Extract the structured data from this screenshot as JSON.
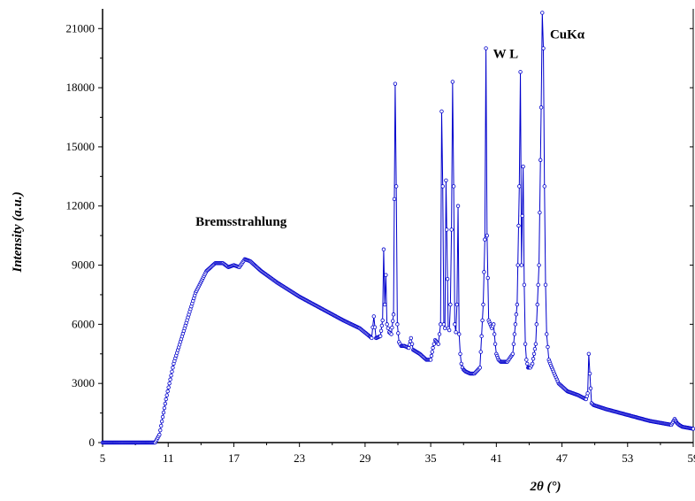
{
  "chart_data": {
    "type": "line",
    "xlabel": "2θ (°)",
    "ylabel": "Intensity (a.u.)",
    "xlim": [
      5,
      59
    ],
    "ylim": [
      0,
      22000
    ],
    "xticks": [
      "5",
      "11",
      "17",
      "23",
      "29",
      "35",
      "41",
      "47",
      "53",
      "59"
    ],
    "yticks": [
      "0",
      "3000",
      "6000",
      "9000",
      "12000",
      "15000",
      "18000",
      "21000"
    ],
    "grid": false,
    "line_color": "#0000cc",
    "marker": "open-circle",
    "annotations": [
      {
        "text": "Bremsstrahlung",
        "x": 13.5,
        "y": 11000
      },
      {
        "text": "W L",
        "x": 40.7,
        "y": 19500
      },
      {
        "text": "CuKα",
        "x": 45.9,
        "y": 20500
      }
    ],
    "series": [
      {
        "x": [
          5,
          8,
          9.8,
          10.2,
          10.8,
          11.5,
          12.5,
          13.5,
          14.5,
          15.3,
          16.0,
          16.5,
          17.0,
          17.5,
          18.0,
          18.5,
          19.5,
          21,
          23,
          25,
          27,
          28.5,
          29.4,
          29.6,
          29.8,
          30.0,
          30.4,
          30.6,
          30.7,
          30.8,
          30.9,
          31.0,
          31.2,
          31.4,
          31.6,
          31.75,
          31.85,
          31.95,
          32.1,
          32.3,
          32.6,
          33.0,
          33.2,
          33.4,
          34.0,
          34.6,
          35.0,
          35.2,
          35.4,
          35.7,
          35.9,
          36.0,
          36.1,
          36.2,
          36.3,
          36.4,
          36.6,
          36.7,
          36.8,
          36.9,
          37.0,
          37.1,
          37.2,
          37.3,
          37.4,
          37.5,
          37.6,
          37.7,
          37.8,
          37.9,
          38.0,
          38.2,
          38.6,
          39.0,
          39.5,
          39.8,
          39.95,
          40.05,
          40.15,
          40.3,
          40.45,
          40.6,
          40.75,
          40.9,
          41.0,
          41.2,
          41.4,
          41.7,
          42.0,
          42.5,
          42.9,
          43.1,
          43.2,
          43.3,
          43.45,
          43.55,
          43.65,
          43.75,
          43.9,
          44.1,
          44.3,
          44.6,
          44.9,
          45.1,
          45.2,
          45.3,
          45.4,
          45.5,
          45.6,
          45.8,
          46.0,
          46.3,
          46.7,
          47.5,
          48.5,
          49.2,
          49.35,
          49.45,
          49.55,
          49.7,
          49.9,
          51,
          53,
          55,
          57,
          57.3,
          57.5,
          57.7,
          58,
          59
        ],
        "y": [
          0,
          0,
          0,
          400,
          2200,
          4000,
          5800,
          7600,
          8700,
          9100,
          9100,
          8900,
          9000,
          8900,
          9300,
          9200,
          8700,
          8100,
          7400,
          6800,
          6200,
          5800,
          5400,
          5300,
          6400,
          5300,
          5400,
          6200,
          9800,
          7000,
          8500,
          6000,
          5600,
          5500,
          6500,
          18200,
          13000,
          6000,
          5100,
          4900,
          4900,
          4800,
          5300,
          4700,
          4500,
          4200,
          4200,
          4800,
          5200,
          5000,
          6000,
          16800,
          13000,
          6000,
          5800,
          13300,
          5800,
          5700,
          7000,
          10800,
          18300,
          13000,
          6000,
          5600,
          7000,
          12000,
          5500,
          4500,
          4000,
          3800,
          3700,
          3600,
          3500,
          3500,
          3800,
          7000,
          10300,
          20000,
          10500,
          6200,
          6000,
          5800,
          6000,
          5000,
          4500,
          4200,
          4100,
          4100,
          4100,
          4500,
          7000,
          13000,
          18800,
          9000,
          14000,
          8000,
          5000,
          4200,
          3800,
          3800,
          4000,
          5000,
          9000,
          17000,
          21800,
          20000,
          13000,
          8000,
          5500,
          4200,
          3900,
          3500,
          3000,
          2600,
          2400,
          2200,
          2500,
          4500,
          3500,
          2000,
          1900,
          1700,
          1400,
          1100,
          900,
          1200,
          1000,
          900,
          800,
          700
        ]
      }
    ]
  }
}
